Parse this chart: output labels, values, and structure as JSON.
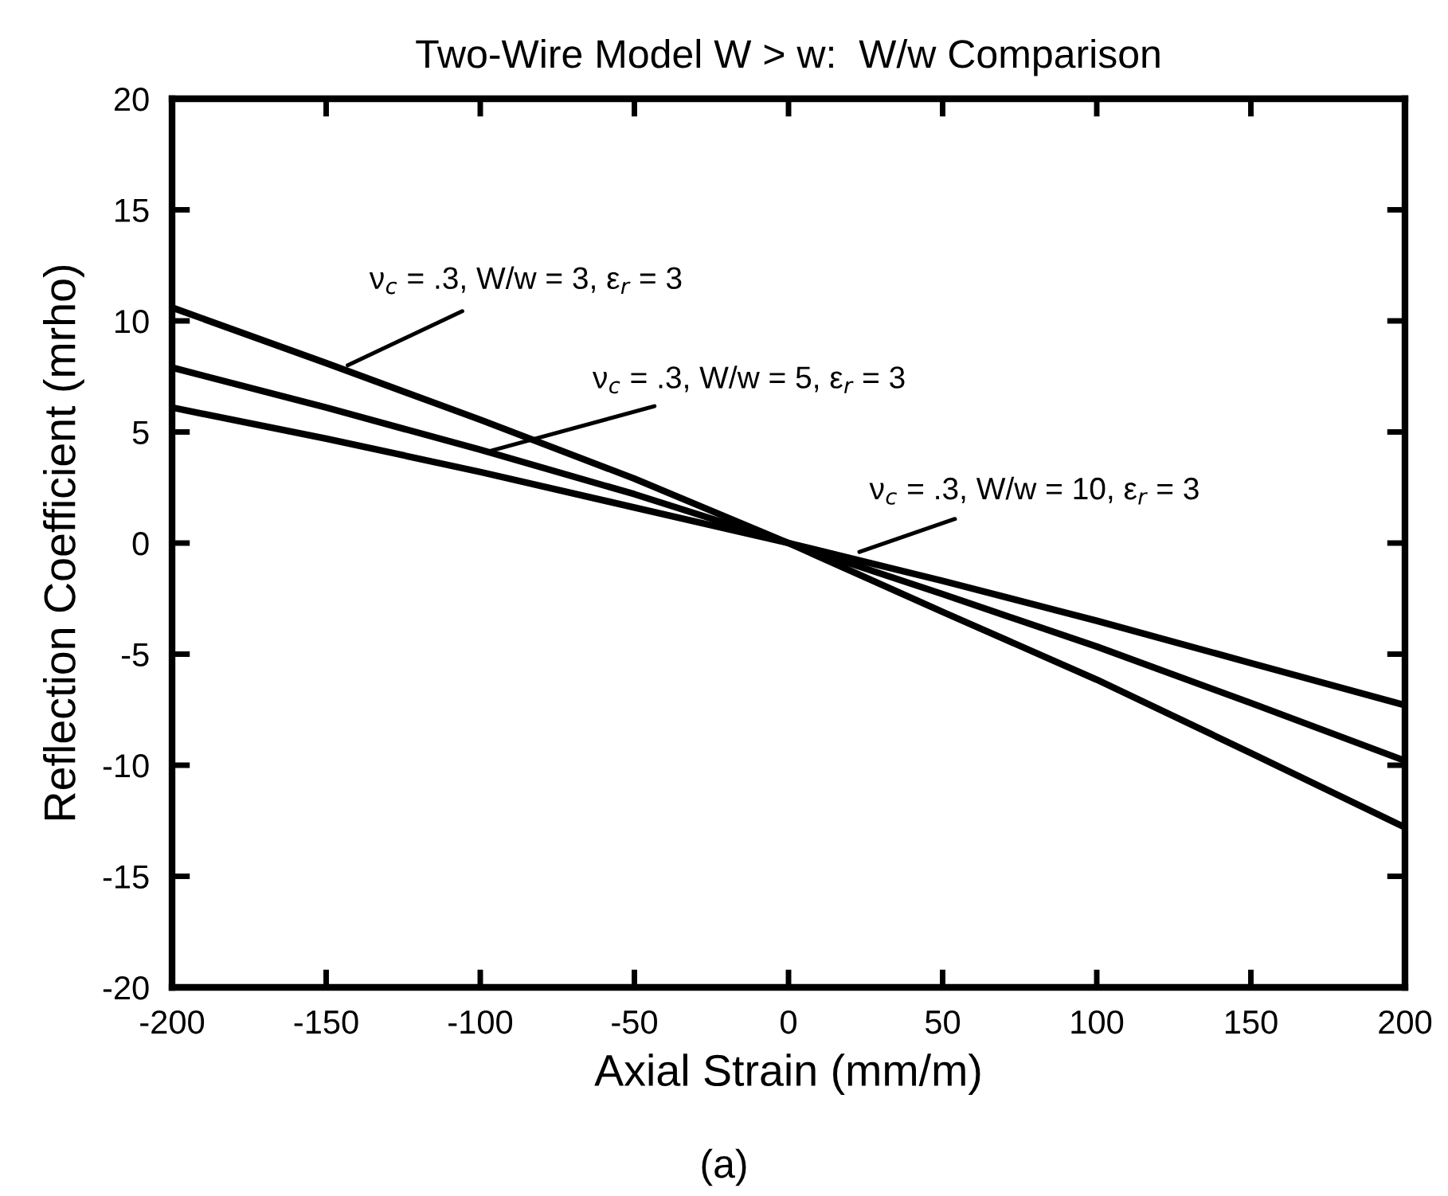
{
  "chart_data": {
    "type": "line",
    "title": "Two-Wire Model W > w:  W/w Comparison",
    "xlabel": "Axial Strain (mm/m)",
    "ylabel": "Reflection Coefficient (mrho)",
    "x": [
      -200,
      -150,
      -100,
      -50,
      0,
      50,
      100,
      150,
      200
    ],
    "series": [
      {
        "color": "#000000",
        "values": [
          10.6,
          8.1,
          5.55,
          2.9,
          0,
          -3.1,
          -6.15,
          -9.45,
          -12.8
        ]
      },
      {
        "color": "#000000",
        "values": [
          7.9,
          6.1,
          4.2,
          2.2,
          0,
          -2.3,
          -4.66,
          -7.2,
          -9.8
        ]
      },
      {
        "color": "#000000",
        "values": [
          6.1,
          4.7,
          3.2,
          1.6,
          0,
          -1.7,
          -3.5,
          -5.4,
          -7.3
        ]
      }
    ],
    "xlim": [
      -200,
      200
    ],
    "xticks": [
      -200,
      -150,
      -100,
      -50,
      0,
      50,
      100,
      150,
      200
    ],
    "ylim": [
      -20,
      20
    ],
    "yticks": [
      -20,
      -15,
      -10,
      -5,
      0,
      5,
      10,
      15,
      20
    ],
    "grid": false,
    "legend": false,
    "marker": "none",
    "line_style": "solid",
    "annotations": [
      {
        "text": "ν$_{c}$ = .3, W/w = 3, ε$_{r}$ = 3",
        "x": -143,
        "y": 8.0
      },
      {
        "text": "ν$_{c}$ = .3, W/w = 5, ε$_{r}$ = 3",
        "x": -98,
        "y": 4.1
      },
      {
        "text": "ν$_{c}$ = .3, W/w = 10, ε$_{r}$ = 3",
        "x": 23,
        "y": -0.4
      },
      "(a)"
    ]
  }
}
